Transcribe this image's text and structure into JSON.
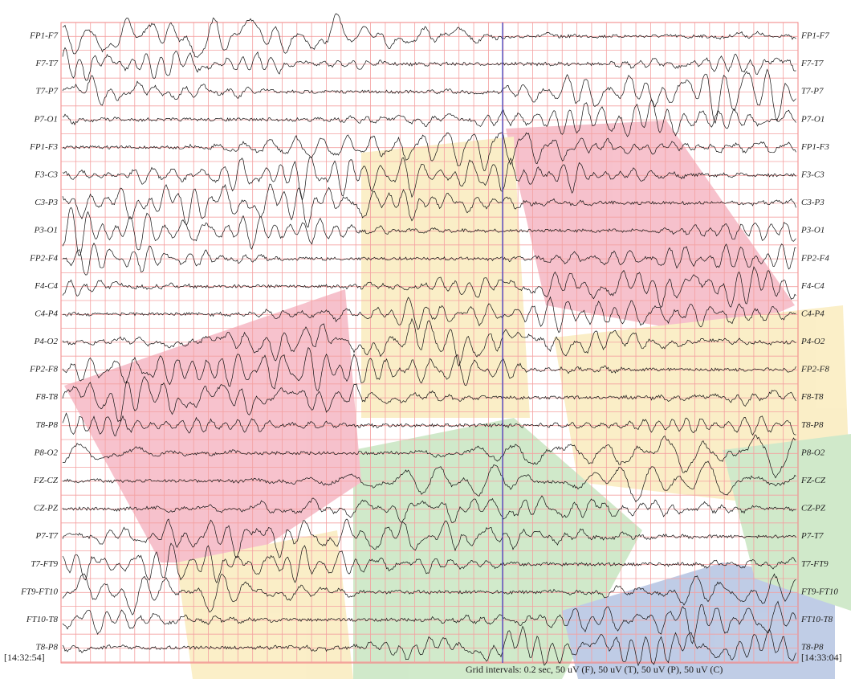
{
  "channels": [
    "FP1-F7",
    "F7-T7",
    "T7-P7",
    "P7-O1",
    "FP1-F3",
    "F3-C3",
    "C3-P3",
    "P3-O1",
    "FP2-F4",
    "F4-C4",
    "C4-P4",
    "P4-O2",
    "FP2-F8",
    "F8-T8",
    "T8-P8",
    "P8-O2",
    "FZ-CZ",
    "CZ-PZ",
    "P7-T7",
    "T7-FT9",
    "FT9-FT10",
    "FT10-T8",
    "T8-P8"
  ],
  "start_time": "[14:32:54]",
  "end_time": "[14:33:04]",
  "grid_caption": "Grid intervals: 0.2 sec, 50 uV (F), 50 uV (T), 50 uV (P), 50 uV (C)"
}
